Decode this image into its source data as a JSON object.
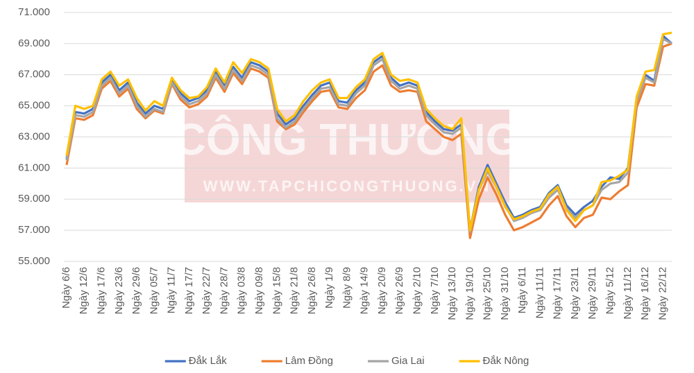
{
  "chart_data": {
    "type": "line",
    "watermark": {
      "title": "CÔNG THƯƠNG",
      "url": "WWW.TAPCHICONGTHUONG.VN"
    },
    "categories": [
      "Ngày 6/6",
      null,
      "Ngày 12/6",
      null,
      "Ngày 17/6",
      null,
      "Ngày 23/6",
      null,
      "Ngày 29/6",
      null,
      "Ngày 05/7",
      null,
      "Ngày 11/7",
      null,
      "Ngày 17/7",
      null,
      "Ngày 22/7",
      null,
      "Ngày 28/7",
      null,
      "Ngày 03/8",
      null,
      "Ngày 09/8",
      null,
      "Ngày 15/8",
      null,
      "Ngày 21/8",
      null,
      "Ngày 26/8",
      null,
      "Ngày 1/9",
      null,
      "Ngày 8/9",
      null,
      "Ngày 14/9",
      null,
      "Ngày 20/9",
      null,
      "Ngày 26/9",
      null,
      "Ngày 2/10",
      null,
      "Ngày 7/10",
      null,
      "Ngày 13/10",
      null,
      "Ngày 19/10",
      null,
      "Ngày 25/10",
      null,
      "Ngày 31/10",
      null,
      "Ngày 6/11",
      null,
      "Ngày 11/11",
      null,
      "Ngày 17/11",
      null,
      "Ngày 23/11",
      null,
      "Ngày 29/11",
      null,
      "Ngày 5/12",
      null,
      "Ngày 11/12",
      null,
      "Ngày 16/12",
      null,
      "Ngày 22/12",
      null
    ],
    "series": [
      {
        "name": "Đắk Lắk",
        "color": "#4472c4",
        "values": [
          61600,
          64600,
          64500,
          64800,
          66500,
          67000,
          66000,
          66500,
          65200,
          64500,
          65000,
          64800,
          66700,
          65800,
          65300,
          65500,
          66000,
          67200,
          66300,
          67500,
          66800,
          67800,
          67600,
          67200,
          64500,
          63800,
          64200,
          65000,
          65700,
          66300,
          66500,
          65300,
          65200,
          66000,
          66500,
          67800,
          68200,
          66800,
          66300,
          66500,
          66300,
          64600,
          64000,
          63500,
          63400,
          63800,
          57000,
          59800,
          61200,
          60000,
          58800,
          57800,
          58000,
          58300,
          58500,
          59400,
          59900,
          58600,
          58000,
          58500,
          58900,
          59800,
          60400,
          60300,
          61000,
          65500,
          67000,
          66600,
          69500,
          69000
        ]
      },
      {
        "name": "Lâm Đồng",
        "color": "#ed7d31",
        "values": [
          61200,
          64200,
          64100,
          64400,
          66100,
          66600,
          65600,
          66100,
          64800,
          64200,
          64700,
          64500,
          66400,
          65400,
          64900,
          65100,
          65600,
          66800,
          65900,
          67100,
          66400,
          67400,
          67200,
          66800,
          64000,
          63500,
          63800,
          64600,
          65300,
          65900,
          66000,
          64900,
          64800,
          65500,
          66000,
          67200,
          67600,
          66300,
          65900,
          66000,
          65900,
          64000,
          63500,
          63000,
          62800,
          63200,
          56500,
          59000,
          60400,
          59300,
          58000,
          57000,
          57200,
          57500,
          57800,
          58600,
          59200,
          57900,
          57200,
          57800,
          58000,
          59100,
          59000,
          59500,
          59900,
          64900,
          66400,
          66300,
          68800,
          69000
        ]
      },
      {
        "name": "Gia Lai",
        "color": "#a5a5a5",
        "values": [
          61500,
          64400,
          64300,
          64600,
          66300,
          66800,
          65800,
          66300,
          65000,
          64300,
          64800,
          64600,
          66500,
          65600,
          65100,
          65300,
          65800,
          67000,
          66100,
          67300,
          66600,
          67600,
          67400,
          67000,
          64200,
          63600,
          64000,
          64800,
          65500,
          66100,
          66200,
          65100,
          65000,
          65800,
          66300,
          67600,
          68000,
          66600,
          66100,
          66300,
          66100,
          64400,
          63800,
          63300,
          63200,
          63600,
          56900,
          59600,
          60800,
          59800,
          58600,
          57600,
          57800,
          58100,
          58300,
          59100,
          59600,
          58400,
          57800,
          58300,
          58600,
          59600,
          60000,
          60100,
          60700,
          65300,
          66800,
          66500,
          69300,
          69000
        ]
      },
      {
        "name": "Đắk Nông",
        "color": "#ffc000",
        "values": [
          61800,
          65000,
          64800,
          65000,
          66700,
          67200,
          66300,
          66700,
          65500,
          64700,
          65300,
          65000,
          66800,
          66000,
          65500,
          65600,
          66200,
          67400,
          66500,
          67800,
          67100,
          68000,
          67800,
          67400,
          64800,
          64000,
          64400,
          65300,
          66000,
          66500,
          66700,
          65500,
          65500,
          66200,
          66700,
          68000,
          68400,
          67000,
          66600,
          66700,
          66500,
          64800,
          64200,
          63700,
          63500,
          64200,
          57000,
          59600,
          61000,
          59800,
          58500,
          57700,
          57900,
          58200,
          58400,
          59300,
          59800,
          58300,
          57600,
          58300,
          58600,
          60100,
          60200,
          60500,
          60900,
          65600,
          67200,
          67300,
          69600,
          69700
        ]
      }
    ],
    "ylim": [
      55000,
      71000
    ],
    "yticks": [
      {
        "value": 55000,
        "label": "55.000"
      },
      {
        "value": 57000,
        "label": "57.000"
      },
      {
        "value": 59000,
        "label": "59.000"
      },
      {
        "value": 61000,
        "label": "61.000"
      },
      {
        "value": 63000,
        "label": "63.000"
      },
      {
        "value": 65000,
        "label": "65.000"
      },
      {
        "value": 67000,
        "label": "67.000"
      },
      {
        "value": 69000,
        "label": "69.000"
      },
      {
        "value": 71000,
        "label": "71.000"
      }
    ],
    "grid": true,
    "legend": "bottom"
  }
}
